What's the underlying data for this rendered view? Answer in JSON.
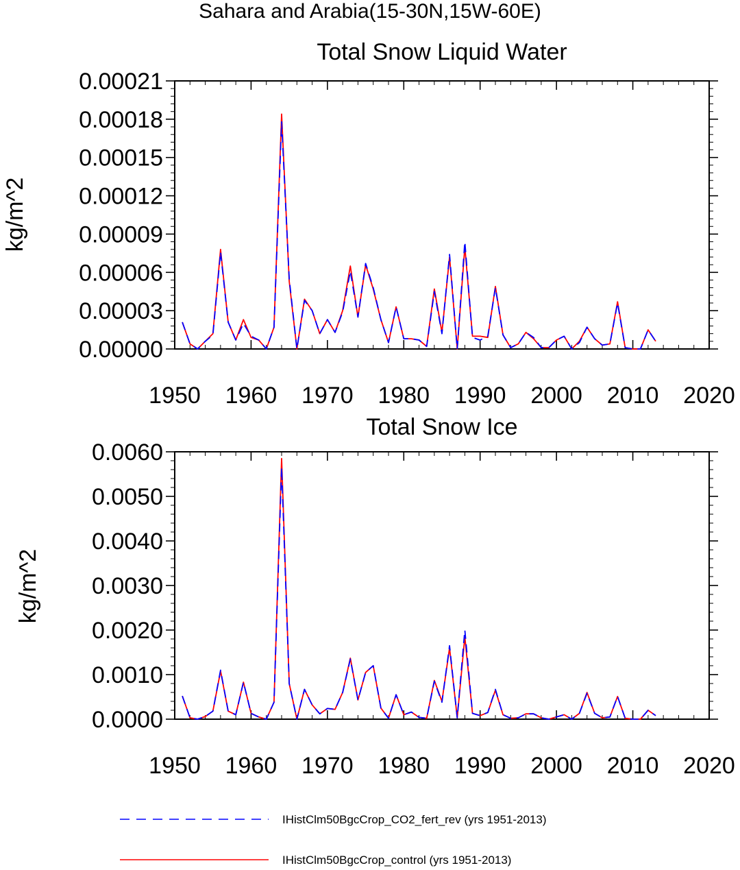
{
  "figure_title": "Sahara and Arabia(15-30N,15W-60E)",
  "legend": [
    {
      "label": "IHistClm50BgcCrop_CO2_fert_rev (yrs 1951-2013)",
      "color": "#0000ff",
      "style": "dashed"
    },
    {
      "label": "IHistClm50BgcCrop_control (yrs 1951-2013)",
      "color": "#ff0000",
      "style": "solid"
    }
  ],
  "chart_data": [
    {
      "type": "line",
      "title": "Total Snow Liquid Water",
      "ylabel": "kg/m^2",
      "xlabel": "",
      "xlim": [
        1950,
        2020
      ],
      "ylim": [
        0,
        0.00021
      ],
      "xticks": [
        1950,
        1960,
        1970,
        1980,
        1990,
        2000,
        2010,
        2020
      ],
      "xtick_labels": [
        "1950",
        "1960",
        "1970",
        "1980",
        "1990",
        "2000",
        "2010",
        "2020"
      ],
      "yticks": [
        0,
        3e-05,
        6e-05,
        9e-05,
        0.00012,
        0.00015,
        0.00018,
        0.00021
      ],
      "ytick_labels": [
        "0.00000",
        "0.00003",
        "0.00006",
        "0.00009",
        "0.00012",
        "0.00015",
        "0.00018",
        "0.00021"
      ],
      "grid": false,
      "x": [
        1951,
        1952,
        1953,
        1954,
        1955,
        1956,
        1957,
        1958,
        1959,
        1960,
        1961,
        1962,
        1963,
        1964,
        1965,
        1966,
        1967,
        1968,
        1969,
        1970,
        1971,
        1972,
        1973,
        1974,
        1975,
        1976,
        1977,
        1978,
        1979,
        1980,
        1981,
        1982,
        1983,
        1984,
        1985,
        1986,
        1987,
        1988,
        1989,
        1990,
        1991,
        1992,
        1993,
        1994,
        1995,
        1996,
        1997,
        1998,
        1999,
        2000,
        2001,
        2002,
        2003,
        2004,
        2005,
        2006,
        2007,
        2008,
        2009,
        2010,
        2011,
        2012,
        2013
      ],
      "series": [
        {
          "name": "IHistClm50BgcCrop_CO2_fert_rev (yrs 1951-2013)",
          "color": "#0000ff",
          "style": "dashed",
          "values": [
            2.1e-05,
            4e-06,
            0.0,
            6e-06,
            1.1e-05,
            7.6e-05,
            2.1e-05,
            7e-06,
            2e-05,
            1e-05,
            7e-06,
            0.0,
            1.7e-05,
            0.000178,
            5.5e-05,
            0.0,
            3.8e-05,
            3e-05,
            1.2e-05,
            2.3e-05,
            1.3e-05,
            2.9e-05,
            6.1e-05,
            2.5e-05,
            6.7e-05,
            4.8e-05,
            2.3e-05,
            5e-06,
            3.3e-05,
            8e-06,
            8e-06,
            7e-06,
            2e-06,
            4.5e-05,
            1.2e-05,
            7.4e-05,
            0.0,
            8.4e-05,
            9e-06,
            7e-06,
            1e-05,
            4.8e-05,
            1.1e-05,
            1e-06,
            4e-06,
            1.3e-05,
            9e-06,
            1e-06,
            1e-06,
            7e-06,
            1e-05,
            0.0,
            5e-06,
            1.7e-05,
            8e-06,
            3e-06,
            4e-06,
            3.6e-05,
            1e-06,
            0.0,
            0.0,
            1.5e-05,
            6e-06
          ]
        },
        {
          "name": "IHistClm50BgcCrop_control (yrs 1951-2013)",
          "color": "#ff0000",
          "style": "solid",
          "values": [
            2.1e-05,
            4e-06,
            0.0,
            6e-06,
            1.2e-05,
            7.8e-05,
            2.1e-05,
            7e-06,
            2.3e-05,
            9e-06,
            7e-06,
            0.0,
            1.7e-05,
            0.000184,
            5.3e-05,
            0.0,
            3.9e-05,
            3e-05,
            1.2e-05,
            2.3e-05,
            1.3e-05,
            3e-05,
            6.5e-05,
            2.5e-05,
            6.6e-05,
            4.7e-05,
            2.3e-05,
            5e-06,
            3.3e-05,
            8e-06,
            8e-06,
            7e-06,
            2e-06,
            4.7e-05,
            1.3e-05,
            7.2e-05,
            0.0,
            8e-05,
            1e-05,
            1e-05,
            9e-06,
            4.9e-05,
            1.1e-05,
            1e-06,
            4e-06,
            1.3e-05,
            8e-06,
            1e-06,
            1e-06,
            7e-06,
            1e-05,
            0.0,
            6e-06,
            1.7e-05,
            8e-06,
            3e-06,
            4e-06,
            3.7e-05,
            1e-06,
            0.0,
            0.0,
            1.5e-05,
            6e-06
          ]
        }
      ]
    },
    {
      "type": "line",
      "title": "Total Snow Ice",
      "ylabel": "kg/m^2",
      "xlabel": "",
      "xlim": [
        1950,
        2020
      ],
      "ylim": [
        0,
        0.006
      ],
      "xticks": [
        1950,
        1960,
        1970,
        1980,
        1990,
        2000,
        2010,
        2020
      ],
      "xtick_labels": [
        "1950",
        "1960",
        "1970",
        "1980",
        "1990",
        "2000",
        "2010",
        "2020"
      ],
      "yticks": [
        0,
        0.001,
        0.002,
        0.003,
        0.004,
        0.005,
        0.006
      ],
      "ytick_labels": [
        "0.0000",
        "0.0010",
        "0.0020",
        "0.0030",
        "0.0040",
        "0.0050",
        "0.0060"
      ],
      "grid": false,
      "x": [
        1951,
        1952,
        1953,
        1954,
        1955,
        1956,
        1957,
        1958,
        1959,
        1960,
        1961,
        1962,
        1963,
        1964,
        1965,
        1966,
        1967,
        1968,
        1969,
        1970,
        1971,
        1972,
        1973,
        1974,
        1975,
        1976,
        1977,
        1978,
        1979,
        1980,
        1981,
        1982,
        1983,
        1984,
        1985,
        1986,
        1987,
        1988,
        1989,
        1990,
        1991,
        1992,
        1993,
        1994,
        1995,
        1996,
        1997,
        1998,
        1999,
        2000,
        2001,
        2002,
        2003,
        2004,
        2005,
        2006,
        2007,
        2008,
        2009,
        2010,
        2011,
        2012,
        2013
      ],
      "series": [
        {
          "name": "IHistClm50BgcCrop_CO2_fert_rev (yrs 1951-2013)",
          "color": "#0000ff",
          "style": "dashed",
          "values": [
            0.00052,
            3e-05,
            0.0,
            6e-05,
            0.00018,
            0.0011,
            0.00018,
            0.0001,
            0.00083,
            0.00013,
            5e-05,
            0.0,
            0.00038,
            0.00565,
            0.0008,
            0.0,
            0.00067,
            0.00032,
            0.00012,
            0.00024,
            0.00022,
            0.0006,
            0.00135,
            0.00043,
            0.00105,
            0.0012,
            0.00025,
            2e-05,
            0.00055,
            0.0001,
            0.00016,
            4e-05,
            2e-05,
            0.00085,
            0.00038,
            0.00165,
            3e-05,
            0.002,
            0.00013,
            8e-05,
            0.00015,
            0.00067,
            0.0001,
            2e-05,
            3e-05,
            0.00012,
            0.00012,
            3e-05,
            0.0,
            5e-05,
            0.0001,
            0.0,
            0.00013,
            0.00058,
            0.00013,
            3e-05,
            5e-05,
            0.00051,
            2e-05,
            0.0,
            0.0,
            0.0002,
            8e-05
          ]
        },
        {
          "name": "IHistClm50BgcCrop_control (yrs 1951-2013)",
          "color": "#ff0000",
          "style": "solid",
          "values": [
            0.00052,
            3e-05,
            0.0,
            6e-05,
            0.00018,
            0.00108,
            0.00018,
            0.0001,
            0.00083,
            0.00013,
            5e-05,
            0.0,
            0.00038,
            0.00585,
            0.0008,
            0.0,
            0.00067,
            0.00032,
            0.00012,
            0.00024,
            0.00022,
            0.0006,
            0.00137,
            0.00043,
            0.00105,
            0.0012,
            0.00025,
            2e-05,
            0.00055,
            0.0001,
            0.00016,
            4e-05,
            2e-05,
            0.00087,
            0.0004,
            0.0016,
            3e-05,
            0.00185,
            0.00013,
            8e-05,
            0.00015,
            0.00065,
            0.0001,
            2e-05,
            3e-05,
            0.00012,
            0.00012,
            3e-05,
            0.0,
            5e-05,
            0.0001,
            0.0,
            0.00013,
            0.0006,
            0.00013,
            3e-05,
            5e-05,
            0.00051,
            2e-05,
            0.0,
            0.0,
            0.0002,
            8e-05
          ]
        }
      ]
    }
  ]
}
